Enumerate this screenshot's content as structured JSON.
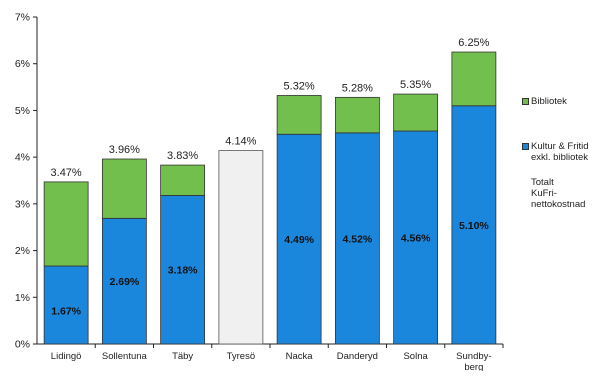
{
  "chart_data": {
    "type": "bar",
    "stacked": true,
    "categories": [
      "Lidingö",
      "Sollentuna",
      "Täby",
      "Tyresö",
      "Nacka",
      "Danderyd",
      "Solna",
      "Sundby-berg"
    ],
    "series": [
      {
        "name": "Kultur & Fritid exkl. bibliotek",
        "color": "#1a86dc",
        "values": [
          1.67,
          2.69,
          3.18,
          null,
          4.49,
          4.52,
          4.56,
          5.1
        ],
        "labels": [
          "1.67%",
          "2.69%",
          "3.18%",
          "",
          "4.49%",
          "4.52%",
          "4.56%",
          "5.10%"
        ]
      },
      {
        "name": "Bibliotek",
        "color": "#72bf4e",
        "values": [
          1.8,
          1.27,
          0.65,
          null,
          0.83,
          0.76,
          0.79,
          1.15
        ]
      },
      {
        "name": "Totalt KuFri-nettokostnad",
        "color": "#f0f0f0",
        "values": [
          null,
          null,
          null,
          4.14,
          null,
          null,
          null,
          null
        ]
      }
    ],
    "totals": [
      3.47,
      3.96,
      3.83,
      4.14,
      5.32,
      5.28,
      5.35,
      6.25
    ],
    "total_labels": [
      "3.47%",
      "3.96%",
      "3.83%",
      "4.14%",
      "5.32%",
      "5.28%",
      "5.35%",
      "6.25%"
    ],
    "yticks": [
      "0%",
      "1%",
      "2%",
      "3%",
      "4%",
      "5%",
      "6%",
      "7%"
    ],
    "ylim": [
      0,
      7
    ],
    "grid": false,
    "legend_position": "right"
  },
  "legend": {
    "bibliotek": "Bibliotek",
    "kultur": "Kultur & Fritid exkl. bibliotek",
    "totalt": "Totalt\nKuFri-\nnettokostnad"
  }
}
